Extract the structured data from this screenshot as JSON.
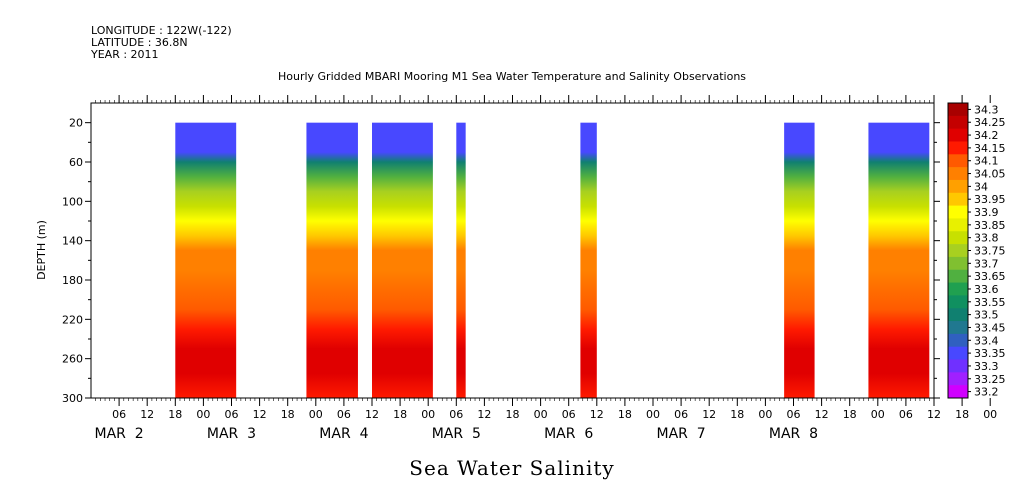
{
  "header": {
    "longitude": "LONGITUDE : 122W(-122)",
    "latitude": "LATITUDE : 36.8N",
    "year": "YEAR : 2011"
  },
  "chart_data": {
    "type": "heatmap",
    "title": "Hourly Gridded MBARI Mooring M1 Sea Water Temperature and Salinity Observations",
    "xlabel": "Sea Water Salinity",
    "ylabel": "DEPTH (m)",
    "ylim": [
      300,
      0
    ],
    "y_ticks": [
      20,
      60,
      100,
      140,
      180,
      220,
      260,
      300
    ],
    "x_hour_ticks": [
      "06",
      "12",
      "18",
      "00",
      "06",
      "12",
      "18",
      "00",
      "06",
      "12",
      "18",
      "00",
      "06",
      "12",
      "18",
      "00",
      "06",
      "12",
      "18",
      "00",
      "06",
      "12",
      "18",
      "00",
      "06",
      "12",
      "18",
      "00",
      "06",
      "12",
      "18",
      "00"
    ],
    "x_day_labels": [
      "MAR  2",
      "MAR  3",
      "MAR  4",
      "MAR  5",
      "MAR  6",
      "MAR  7",
      "MAR  8"
    ],
    "x_range_hours": [
      0,
      180
    ],
    "colorbar": {
      "levels": [
        "34.3",
        "34.25",
        "34.2",
        "34.15",
        "34.1",
        "34.05",
        "34",
        "33.95",
        "33.9",
        "33.85",
        "33.8",
        "33.75",
        "33.7",
        "33.65",
        "33.6",
        "33.55",
        "33.5",
        "33.45",
        "33.4",
        "33.35",
        "33.3",
        "33.25",
        "33.2"
      ],
      "colors": [
        "#a80000",
        "#c40000",
        "#e00000",
        "#ff1a00",
        "#ff5a00",
        "#ff8000",
        "#ffa000",
        "#ffc800",
        "#ffff00",
        "#e8f000",
        "#c8e000",
        "#a8d020",
        "#80c030",
        "#50b040",
        "#20a050",
        "#109060",
        "#108070",
        "#207890",
        "#3060c0",
        "#4848ff",
        "#7030ff",
        "#a020ff",
        "#d000ff"
      ]
    },
    "segments": [
      {
        "start_hour": 18,
        "end_hour": 31
      },
      {
        "start_hour": 46,
        "end_hour": 57
      },
      {
        "start_hour": 60,
        "end_hour": 73
      },
      {
        "start_hour": 78,
        "end_hour": 80
      },
      {
        "start_hour": 104.5,
        "end_hour": 108
      },
      {
        "start_hour": 148,
        "end_hour": 154.5
      },
      {
        "start_hour": 166,
        "end_hour": 179
      }
    ],
    "depth_profile_depths": [
      20,
      50,
      60,
      75,
      90,
      105,
      120,
      135,
      150,
      170,
      210,
      230,
      250,
      275,
      300
    ],
    "depth_profile_salinity": [
      33.35,
      33.37,
      33.5,
      33.68,
      33.76,
      33.84,
      33.92,
      33.99,
      34.05,
      34.08,
      34.14,
      34.19,
      34.24,
      34.2,
      34.18
    ]
  }
}
